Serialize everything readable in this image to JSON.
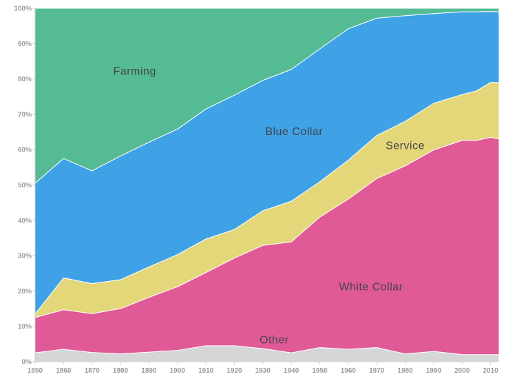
{
  "chart_data": {
    "type": "area",
    "stacked": true,
    "normalized": true,
    "title": "",
    "xlabel": "",
    "ylabel": "",
    "x": [
      1850,
      1860,
      1870,
      1880,
      1890,
      1900,
      1910,
      1920,
      1930,
      1940,
      1950,
      1960,
      1970,
      1980,
      1990,
      2000,
      2005,
      2010,
      2013
    ],
    "x_ticks": [
      "1850",
      "1860",
      "1870",
      "1880",
      "1890",
      "1900",
      "1910",
      "1920",
      "1930",
      "1940",
      "1950",
      "1960",
      "1970",
      "1980",
      "1990",
      "2000",
      "2010"
    ],
    "y_ticks": [
      "0%",
      "10%",
      "20%",
      "30%",
      "40%",
      "50%",
      "60%",
      "70%",
      "80%",
      "90%",
      "100%"
    ],
    "ylim": [
      0,
      100
    ],
    "grid": false,
    "legend": "none",
    "series": [
      {
        "name": "Other",
        "color": "#d6d6d6",
        "label_color": "#444444",
        "values": [
          2.5,
          3.5,
          2.6,
          2.2,
          2.7,
          3.2,
          4.5,
          4.5,
          3.7,
          2.5,
          4.0,
          3.5,
          4.0,
          2.2,
          2.9,
          2.0,
          2.0,
          2.0,
          2.0
        ]
      },
      {
        "name": "White Collar",
        "color": "#e05a98",
        "label_color": "#444444",
        "values": [
          10.0,
          11.2,
          11.0,
          12.8,
          15.5,
          18.0,
          20.7,
          24.8,
          29.2,
          31.4,
          36.9,
          42.5,
          47.8,
          53.2,
          57.0,
          60.6,
          60.6,
          61.5,
          61.0
        ]
      },
      {
        "name": "Service",
        "color": "#e3d77a",
        "label_color": "#444444",
        "values": [
          1.0,
          9.0,
          8.5,
          8.2,
          8.6,
          9.1,
          9.5,
          8.1,
          9.8,
          11.5,
          10.0,
          11.0,
          12.2,
          12.6,
          13.2,
          13.0,
          14.0,
          15.5,
          16.0
        ]
      },
      {
        "name": "Blue Collar",
        "color": "#3fa2e6",
        "label_color": "#444444",
        "values": [
          37.0,
          33.8,
          31.9,
          35.0,
          35.3,
          35.5,
          36.8,
          38.0,
          36.9,
          37.3,
          37.6,
          37.2,
          33.2,
          29.9,
          25.4,
          23.4,
          22.4,
          20.1,
          20.0
        ]
      },
      {
        "name": "Farming",
        "color": "#55bb95",
        "label_color": "#444444",
        "values": [
          49.5,
          42.5,
          46.0,
          41.8,
          37.9,
          34.2,
          28.5,
          24.6,
          20.4,
          17.3,
          11.5,
          5.8,
          2.8,
          2.1,
          1.5,
          1.0,
          1.0,
          0.9,
          1.0
        ]
      }
    ]
  }
}
